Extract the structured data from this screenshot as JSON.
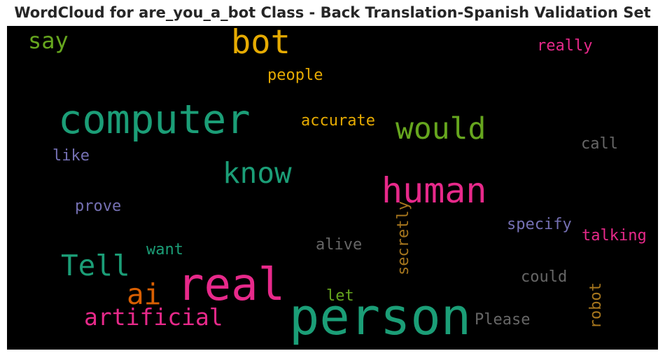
{
  "title": "WordCloud for are_you_a_bot Class - Back Translation-Spanish Validation Set",
  "words": {
    "person": {
      "text": "person",
      "color": "#1b9e77"
    },
    "real": {
      "text": "real",
      "color": "#e7298a"
    },
    "computer": {
      "text": "computer",
      "color": "#1b9e77"
    },
    "human": {
      "text": "human",
      "color": "#e7298a"
    },
    "bot": {
      "text": "bot",
      "color": "#e6ab02"
    },
    "would": {
      "text": "would",
      "color": "#66a61e"
    },
    "know": {
      "text": "know",
      "color": "#1b9e77"
    },
    "tell": {
      "text": "Tell",
      "color": "#1b9e77"
    },
    "ai": {
      "text": "ai",
      "color": "#d95f02"
    },
    "artificial": {
      "text": "artificial",
      "color": "#e7298a"
    },
    "say": {
      "text": "say",
      "color": "#66a61e"
    },
    "people": {
      "text": "people",
      "color": "#e6ab02"
    },
    "accurate": {
      "text": "accurate",
      "color": "#e6ab02"
    },
    "really": {
      "text": "really",
      "color": "#e7298a"
    },
    "call": {
      "text": "call",
      "color": "#666666"
    },
    "like": {
      "text": "like",
      "color": "#7570b3"
    },
    "prove": {
      "text": "prove",
      "color": "#7570b3"
    },
    "specify": {
      "text": "specify",
      "color": "#7570b3"
    },
    "talking": {
      "text": "talking",
      "color": "#e7298a"
    },
    "want": {
      "text": "want",
      "color": "#1b9e77"
    },
    "alive": {
      "text": "alive",
      "color": "#666666"
    },
    "secretly": {
      "text": "secretly",
      "color": "#a6761d"
    },
    "could": {
      "text": "could",
      "color": "#666666"
    },
    "let": {
      "text": "let",
      "color": "#66a61e"
    },
    "please": {
      "text": "Please",
      "color": "#666666"
    },
    "robot": {
      "text": "robot",
      "color": "#a6761d"
    }
  }
}
